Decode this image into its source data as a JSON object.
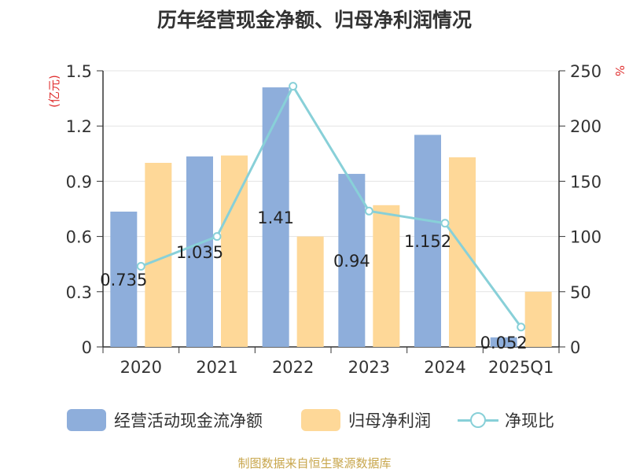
{
  "title": "历年经营现金净额、归母净利润情况",
  "source": "制图数据来自恒生聚源数据库",
  "colors": {
    "cash_flow": "#8eaedb",
    "net_profit": "#fed898",
    "ratio": "#88d0d8",
    "unit_label": "#e03030",
    "axis": "#333333",
    "grid": "#e3e3e3"
  },
  "chart_data": {
    "type": "bar",
    "title": "历年经营现金净额、归母净利润情况",
    "categories": [
      "2020",
      "2021",
      "2022",
      "2023",
      "2024",
      "2025Q1"
    ],
    "y_left": {
      "unit": "(亿元)",
      "ylim": [
        0,
        1.5
      ],
      "ticks": [
        "0",
        "0.3",
        "0.6",
        "0.9",
        "1.2",
        "1.5"
      ]
    },
    "y_right": {
      "unit": "%",
      "ylim": [
        0,
        250
      ],
      "ticks": [
        "0",
        "50",
        "100",
        "150",
        "200",
        "250"
      ]
    },
    "grid": true,
    "legend_position": "bottom",
    "series": [
      {
        "name": "经营活动现金流净额",
        "type": "bar",
        "axis": "left",
        "values": [
          0.735,
          1.035,
          1.41,
          0.94,
          1.152,
          0.052
        ],
        "labels": [
          "0.735",
          "1.035",
          "1.41",
          "0.94",
          "1.152",
          "0.052"
        ]
      },
      {
        "name": "归母净利润",
        "type": "bar",
        "axis": "left",
        "values": [
          1.0,
          1.04,
          0.6,
          0.77,
          1.03,
          0.3
        ]
      },
      {
        "name": "净现比",
        "type": "line",
        "axis": "right",
        "values": [
          73,
          100,
          236,
          123,
          112,
          18
        ]
      }
    ]
  }
}
